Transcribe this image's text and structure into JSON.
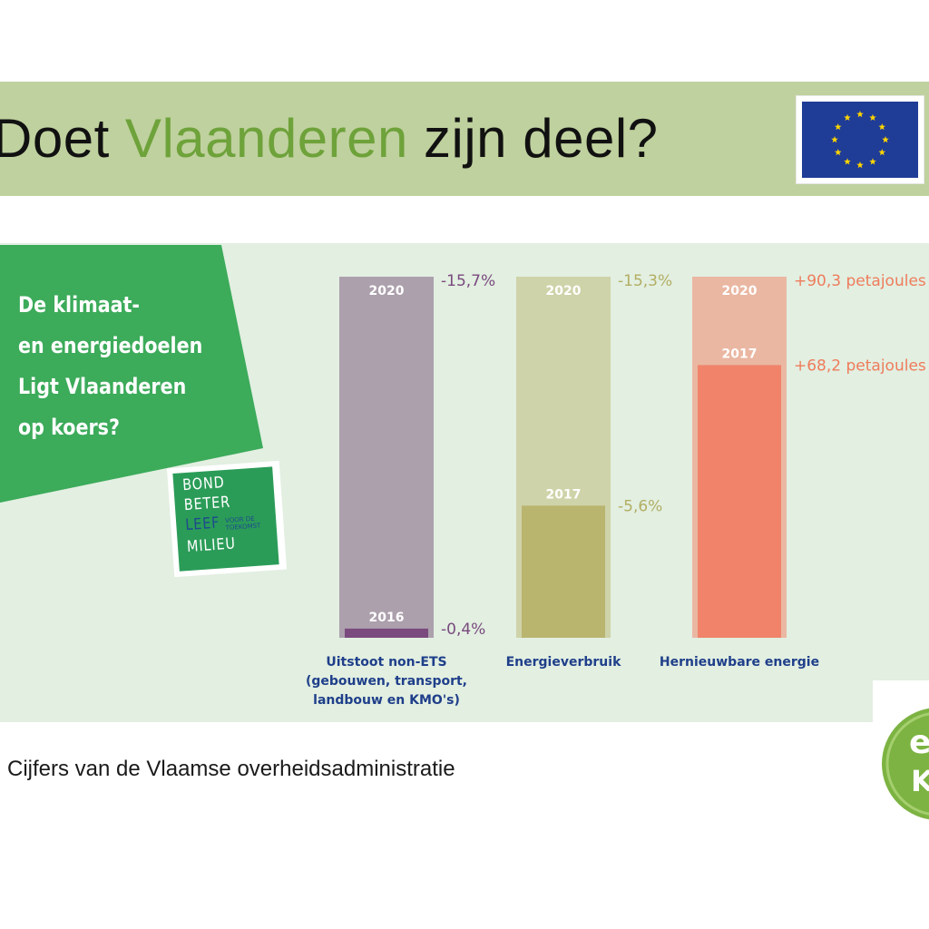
{
  "header": {
    "title_part1": "Doet ",
    "title_highlight": "Vlaanderen",
    "title_part2": " zijn deel?"
  },
  "question": {
    "text": "De klimaat-\nen energiedoelen\nLigt Vlaanderen\nop koers?"
  },
  "logo": {
    "lines": [
      "BOND",
      "BETER",
      "LEEF",
      "MILIEU"
    ],
    "small_text": "VOOR DE TOEKOMST"
  },
  "corner_logo": {
    "text": "e K"
  },
  "source": "Cijfers van de Vlaamse overheidsadministratie",
  "colors": {
    "title_bar": "#bfd19e",
    "panel": "#e2efe1",
    "question_box": "#3cab5a",
    "eu_blue": "#1f3c96",
    "eu_star": "#ffd500"
  },
  "chart_data": {
    "type": "bar",
    "bars": [
      {
        "category": "Uitstoot non-ETS\n(gebouwen, transport,\nlandbouw en KMO's)",
        "target_year": "2020",
        "target_label": "-15,7%",
        "target_value": 15.7,
        "actual_year": "2016",
        "actual_label": "-0,4%",
        "actual_value": 0.4,
        "target_color": "#aca0ad",
        "actual_color": "#7a4a7e",
        "label_color": "#7a4a7e"
      },
      {
        "category": "Energieverbruik",
        "target_year": "2020",
        "target_label": "-15,3%",
        "target_value": 15.3,
        "actual_year": "2017",
        "actual_label": "-5,6%",
        "actual_value": 5.6,
        "target_color": "#cfd3a9",
        "actual_color": "#b9b46e",
        "label_color": "#b3ae63"
      },
      {
        "category": "Hernieuwbare energie",
        "target_year": "2020",
        "target_label": "+90,3 petajoules",
        "target_value": 90.3,
        "actual_year": "2017",
        "actual_label": "+68,2 petajoules",
        "actual_value": 68.2,
        "target_color": "#eab7a2",
        "actual_color": "#f0836a",
        "label_color": "#ef7c5c"
      }
    ],
    "category_color": "#1f3f8a"
  }
}
